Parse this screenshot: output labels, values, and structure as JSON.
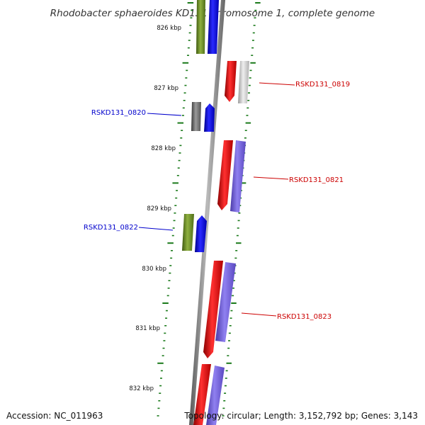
{
  "title": "Rhodobacter sphaeroides KD131 chromosome 1, complete genome",
  "ticks": [
    "826 kbp",
    "827 kbp",
    "828 kbp",
    "829 kbp",
    "830 kbp",
    "831 kbp",
    "832 kbp"
  ],
  "labels": {
    "g0819": "RSKD131_0819",
    "g0820": "RSKD131_0820",
    "g0821": "RSKD131_0821",
    "g0822": "RSKD131_0822",
    "g0823": "RSKD131_0823"
  },
  "footer": {
    "accession": "Accession: NC_011963",
    "stats": "Topology: circular; Length: 3,152,792 bp; Genes: 3,143"
  },
  "colors": {
    "red": "#ff0000",
    "blue": "#0000ff",
    "purple": "#7b68ee",
    "olive": "#6b8e23",
    "gray": "#808080",
    "light_gray": "#d3d3d3",
    "tick_green": "#1a7a1a",
    "forward_label": "#0000cc",
    "reverse_label": "#cc0000"
  }
}
